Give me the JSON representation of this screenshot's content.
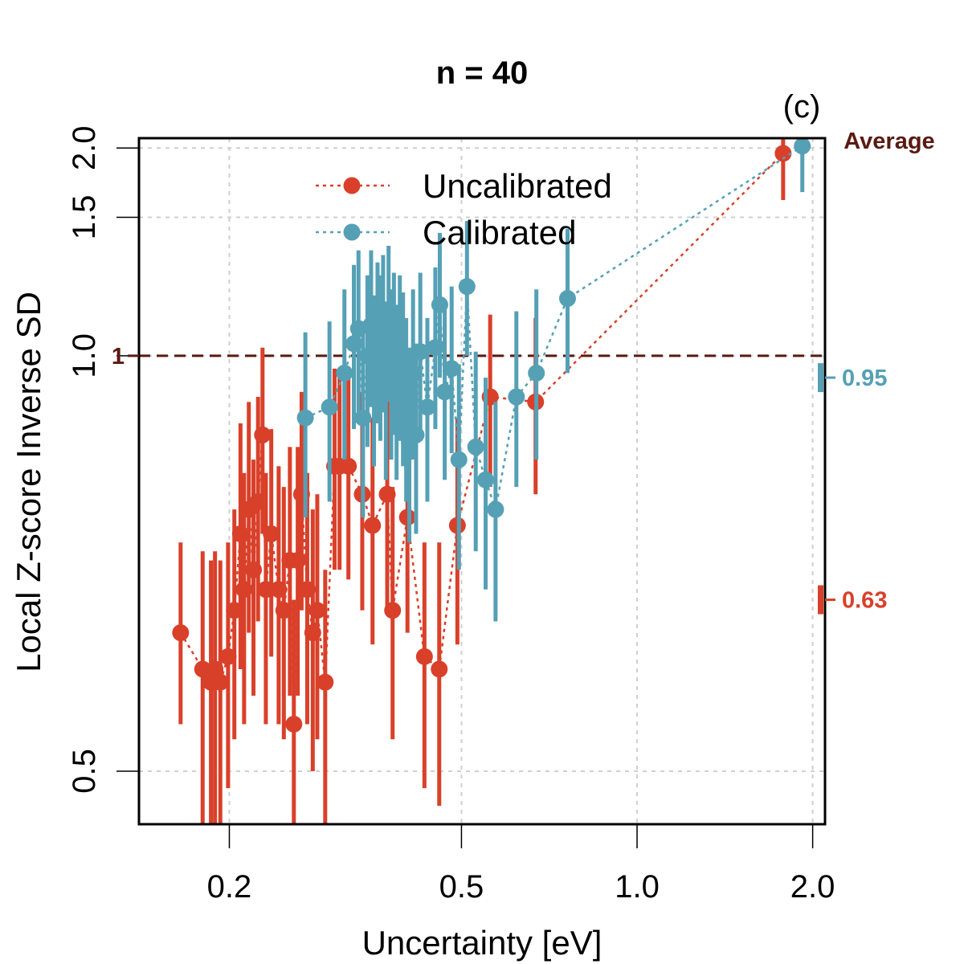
{
  "chart_data": {
    "type": "scatter",
    "title": "n = 40",
    "panel_label": "(c)",
    "xlabel": "Uncertainty [eV]",
    "ylabel": "Local Z-score Inverse SD",
    "x_scale": "log",
    "y_scale": "inverse",
    "xlim": [
      0.14,
      2.1
    ],
    "ylim": [
      0.47,
      2.1
    ],
    "x_ticks": [
      0.2,
      0.5,
      1.0,
      2.0
    ],
    "x_tick_labels": [
      "0.2",
      "0.5",
      "1.0",
      "2.0"
    ],
    "y_ticks": [
      0.5,
      1.0,
      1.5,
      2.0
    ],
    "y_tick_labels": [
      "0.5",
      "1.0",
      "1.5",
      "2.0"
    ],
    "grid": true,
    "legend_position": "top-center",
    "reference": {
      "y": 1.0,
      "label": "1",
      "color": "#5a1a12"
    },
    "average_label": "Average",
    "averages": [
      {
        "series": "Calibrated",
        "value": 0.95,
        "label": "0.95",
        "color": "#55a0b5"
      },
      {
        "series": "Uncalibrated",
        "value": 0.63,
        "label": "0.63",
        "color": "#d9402a"
      }
    ],
    "series": [
      {
        "name": "Uncalibrated",
        "color": "#d9402a",
        "points": [
          {
            "x": 0.165,
            "y": 0.6,
            "lo": 0.53,
            "hi": 0.69
          },
          {
            "x": 0.18,
            "y": 0.57,
            "lo": 0.47,
            "hi": 0.68
          },
          {
            "x": 0.186,
            "y": 0.56,
            "lo": 0.47,
            "hi": 0.67
          },
          {
            "x": 0.189,
            "y": 0.57,
            "lo": 0.47,
            "hi": 0.68
          },
          {
            "x": 0.193,
            "y": 0.56,
            "lo": 0.47,
            "hi": 0.67
          },
          {
            "x": 0.199,
            "y": 0.58,
            "lo": 0.49,
            "hi": 0.69
          },
          {
            "x": 0.204,
            "y": 0.62,
            "lo": 0.52,
            "hi": 0.73
          },
          {
            "x": 0.209,
            "y": 0.7,
            "lo": 0.57,
            "hi": 0.86
          },
          {
            "x": 0.212,
            "y": 0.64,
            "lo": 0.53,
            "hi": 0.78
          },
          {
            "x": 0.216,
            "y": 0.73,
            "lo": 0.6,
            "hi": 0.9
          },
          {
            "x": 0.22,
            "y": 0.66,
            "lo": 0.55,
            "hi": 0.8
          },
          {
            "x": 0.224,
            "y": 0.74,
            "lo": 0.61,
            "hi": 0.91
          },
          {
            "x": 0.228,
            "y": 0.84,
            "lo": 0.7,
            "hi": 1.02
          },
          {
            "x": 0.231,
            "y": 0.64,
            "lo": 0.53,
            "hi": 0.78
          },
          {
            "x": 0.236,
            "y": 0.7,
            "lo": 0.58,
            "hi": 0.85
          },
          {
            "x": 0.243,
            "y": 0.64,
            "lo": 0.53,
            "hi": 0.79
          },
          {
            "x": 0.248,
            "y": 0.62,
            "lo": 0.52,
            "hi": 0.76
          },
          {
            "x": 0.254,
            "y": 0.67,
            "lo": 0.55,
            "hi": 0.82
          },
          {
            "x": 0.258,
            "y": 0.53,
            "lo": 0.47,
            "hi": 0.63
          },
          {
            "x": 0.262,
            "y": 0.67,
            "lo": 0.55,
            "hi": 0.82
          },
          {
            "x": 0.266,
            "y": 0.75,
            "lo": 0.62,
            "hi": 0.92
          },
          {
            "x": 0.272,
            "y": 0.64,
            "lo": 0.53,
            "hi": 0.78
          },
          {
            "x": 0.278,
            "y": 0.6,
            "lo": 0.5,
            "hi": 0.73
          },
          {
            "x": 0.283,
            "y": 0.62,
            "lo": 0.52,
            "hi": 0.75
          },
          {
            "x": 0.292,
            "y": 0.56,
            "lo": 0.47,
            "hi": 0.66
          },
          {
            "x": 0.303,
            "y": 0.79,
            "lo": 0.66,
            "hi": 0.97
          },
          {
            "x": 0.309,
            "y": 0.79,
            "lo": 0.66,
            "hi": 0.96
          },
          {
            "x": 0.32,
            "y": 0.79,
            "lo": 0.65,
            "hi": 0.96
          },
          {
            "x": 0.338,
            "y": 0.75,
            "lo": 0.62,
            "hi": 0.92
          },
          {
            "x": 0.352,
            "y": 0.71,
            "lo": 0.59,
            "hi": 0.87
          },
          {
            "x": 0.373,
            "y": 0.75,
            "lo": 0.62,
            "hi": 0.92
          },
          {
            "x": 0.381,
            "y": 0.62,
            "lo": 0.52,
            "hi": 0.76
          },
          {
            "x": 0.404,
            "y": 0.72,
            "lo": 0.6,
            "hi": 0.89
          },
          {
            "x": 0.432,
            "y": 0.58,
            "lo": 0.49,
            "hi": 0.69
          },
          {
            "x": 0.458,
            "y": 0.57,
            "lo": 0.48,
            "hi": 0.69
          },
          {
            "x": 0.492,
            "y": 0.71,
            "lo": 0.59,
            "hi": 0.87
          },
          {
            "x": 0.56,
            "y": 0.91,
            "lo": 0.76,
            "hi": 1.11
          },
          {
            "x": 0.67,
            "y": 0.9,
            "lo": 0.75,
            "hi": 1.1
          },
          {
            "x": 1.78,
            "y": 1.95,
            "lo": 1.6,
            "hi": 2.5
          }
        ]
      },
      {
        "name": "Calibrated",
        "color": "#55a0b5",
        "points": [
          {
            "x": 0.27,
            "y": 0.87,
            "lo": 0.72,
            "hi": 1.06
          },
          {
            "x": 0.297,
            "y": 0.89,
            "lo": 0.74,
            "hi": 1.09
          },
          {
            "x": 0.315,
            "y": 0.96,
            "lo": 0.8,
            "hi": 1.19
          },
          {
            "x": 0.327,
            "y": 1.03,
            "lo": 0.85,
            "hi": 1.28
          },
          {
            "x": 0.333,
            "y": 1.07,
            "lo": 0.88,
            "hi": 1.34
          },
          {
            "x": 0.339,
            "y": 0.87,
            "lo": 0.72,
            "hi": 1.06
          },
          {
            "x": 0.345,
            "y": 1.0,
            "lo": 0.82,
            "hi": 1.24
          },
          {
            "x": 0.35,
            "y": 1.08,
            "lo": 0.89,
            "hi": 1.34
          },
          {
            "x": 0.354,
            "y": 0.95,
            "lo": 0.79,
            "hi": 1.17
          },
          {
            "x": 0.359,
            "y": 1.04,
            "lo": 0.86,
            "hi": 1.29
          },
          {
            "x": 0.363,
            "y": 1.0,
            "lo": 0.83,
            "hi": 1.24
          },
          {
            "x": 0.367,
            "y": 1.06,
            "lo": 0.88,
            "hi": 1.32
          },
          {
            "x": 0.371,
            "y": 0.93,
            "lo": 0.77,
            "hi": 1.15
          },
          {
            "x": 0.375,
            "y": 1.09,
            "lo": 0.9,
            "hi": 1.36
          },
          {
            "x": 0.379,
            "y": 0.96,
            "lo": 0.8,
            "hi": 1.19
          },
          {
            "x": 0.383,
            "y": 1.01,
            "lo": 0.84,
            "hi": 1.25
          },
          {
            "x": 0.387,
            "y": 0.93,
            "lo": 0.77,
            "hi": 1.14
          },
          {
            "x": 0.392,
            "y": 1.0,
            "lo": 0.83,
            "hi": 1.24
          },
          {
            "x": 0.397,
            "y": 0.95,
            "lo": 0.79,
            "hi": 1.18
          },
          {
            "x": 0.402,
            "y": 0.89,
            "lo": 0.74,
            "hi": 1.1
          },
          {
            "x": 0.407,
            "y": 0.83,
            "lo": 0.69,
            "hi": 1.02
          },
          {
            "x": 0.413,
            "y": 0.96,
            "lo": 0.8,
            "hi": 1.19
          },
          {
            "x": 0.418,
            "y": 0.84,
            "lo": 0.7,
            "hi": 1.03
          },
          {
            "x": 0.425,
            "y": 1.01,
            "lo": 0.84,
            "hi": 1.25
          },
          {
            "x": 0.437,
            "y": 0.89,
            "lo": 0.74,
            "hi": 1.1
          },
          {
            "x": 0.451,
            "y": 1.02,
            "lo": 0.85,
            "hi": 1.27
          },
          {
            "x": 0.459,
            "y": 1.14,
            "lo": 0.95,
            "hi": 1.42
          },
          {
            "x": 0.468,
            "y": 0.92,
            "lo": 0.77,
            "hi": 1.14
          },
          {
            "x": 0.481,
            "y": 0.97,
            "lo": 0.81,
            "hi": 1.2
          },
          {
            "x": 0.495,
            "y": 0.8,
            "lo": 0.66,
            "hi": 0.98
          },
          {
            "x": 0.511,
            "y": 1.2,
            "lo": 1.0,
            "hi": 1.48
          },
          {
            "x": 0.529,
            "y": 0.82,
            "lo": 0.68,
            "hi": 1.01
          },
          {
            "x": 0.55,
            "y": 0.77,
            "lo": 0.64,
            "hi": 0.95
          },
          {
            "x": 0.572,
            "y": 0.73,
            "lo": 0.61,
            "hi": 0.9
          },
          {
            "x": 0.621,
            "y": 0.91,
            "lo": 0.76,
            "hi": 1.12
          },
          {
            "x": 0.672,
            "y": 0.96,
            "lo": 0.8,
            "hi": 1.19
          },
          {
            "x": 0.76,
            "y": 1.16,
            "lo": 0.96,
            "hi": 1.44
          },
          {
            "x": 1.92,
            "y": 2.02,
            "lo": 1.65,
            "hi": 2.6
          }
        ]
      }
    ]
  }
}
